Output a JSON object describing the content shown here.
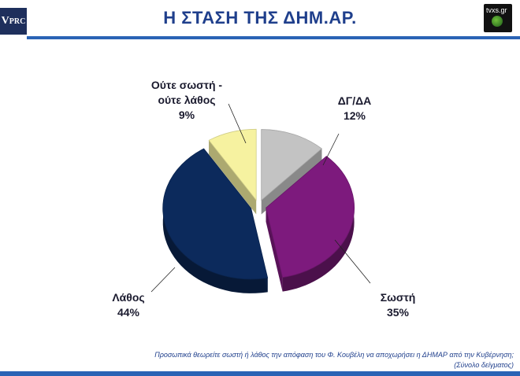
{
  "header": {
    "title": "Η ΣΤΑΣΗ ΤΗΣ ΔΗΜ.ΑΡ.",
    "logo_left_big": "V",
    "logo_left_small": "PRC",
    "logo_right": "tvxs.gr"
  },
  "chart_data": {
    "type": "pie",
    "style": "3d exploded",
    "categories": [
      "ΔΓ/ΔΑ",
      "Σωστή",
      "Λάθος",
      "Ούτε σωστή - ούτε λάθος"
    ],
    "values": [
      12,
      35,
      44,
      9
    ],
    "colors": [
      "#c3c3c3",
      "#7d1a7d",
      "#0c2a5c",
      "#f6f2a0"
    ],
    "labels": [
      {
        "lines": [
          "ΔΓ/ΔΑ",
          "12%"
        ]
      },
      {
        "lines": [
          "Σωστή",
          "35%"
        ]
      },
      {
        "lines": [
          "Λάθος",
          "44%"
        ]
      },
      {
        "lines": [
          "Ούτε σωστή -",
          "ούτε λάθος",
          "9%"
        ]
      }
    ],
    "title": ""
  },
  "footer": {
    "question": "Προσωπικά θεωρείτε σωστή ή λάθος την απόφαση του Φ. Κουβέλη να αποχωρήσει η ΔΗΜΑΡ από την Κυβέρνηση;",
    "base": "(Σύνολο δείγματος)"
  }
}
